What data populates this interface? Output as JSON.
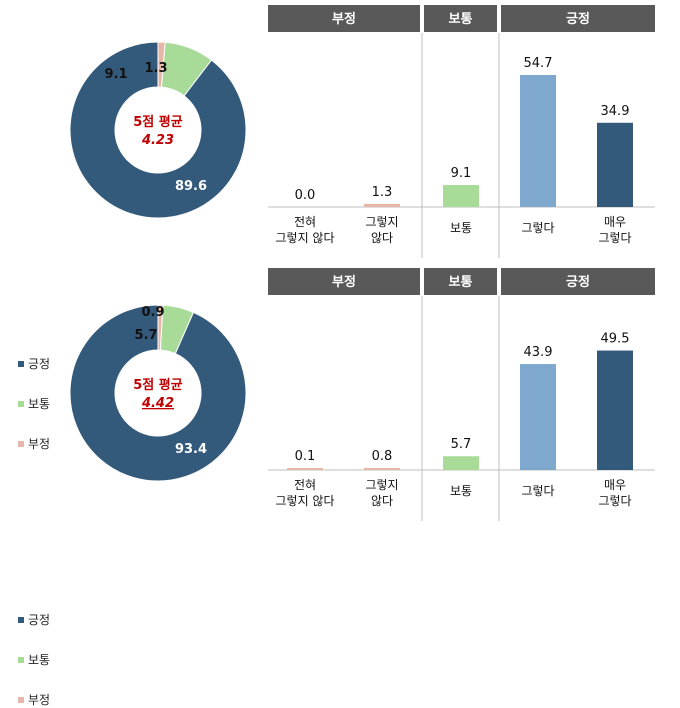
{
  "colors": {
    "positive": "#345a7b",
    "neutral": "#a8db98",
    "negative": "#e6b6a9",
    "agree_bar": "#7fa8cf",
    "header_bg": "#595959",
    "avg_text": "#c00000"
  },
  "avg_label": "5점 평균",
  "headers": [
    "부정",
    "보통",
    "긍정"
  ],
  "legend": [
    "긍정",
    "보통",
    "부정"
  ],
  "bar_labels": [
    [
      "전혀",
      "그렇지 않다"
    ],
    [
      "그렇지",
      "않다"
    ],
    [
      "보통"
    ],
    [
      "그렇다"
    ],
    [
      "매우",
      "그렇다"
    ]
  ],
  "chart_data": [
    {
      "type": "donut+bar",
      "donut": {
        "average": "4.23",
        "slices": [
          {
            "name": "긍정",
            "value": 89.6
          },
          {
            "name": "보통",
            "value": 9.1
          },
          {
            "name": "부정",
            "value": 1.3
          }
        ]
      },
      "bars": [
        0.0,
        1.3,
        9.1,
        54.7,
        34.9
      ],
      "bar_value_labels": [
        "0.0",
        "1.3",
        "9.1",
        "54.7",
        "34.9"
      ]
    },
    {
      "type": "donut+bar",
      "donut": {
        "average": "4.42",
        "slices": [
          {
            "name": "긍정",
            "value": 93.4
          },
          {
            "name": "보통",
            "value": 5.7
          },
          {
            "name": "부정",
            "value": 0.9
          }
        ]
      },
      "bars": [
        0.1,
        0.8,
        5.7,
        43.9,
        49.5
      ],
      "bar_value_labels": [
        "0.1",
        "0.8",
        "5.7",
        "43.9",
        "49.5"
      ]
    }
  ]
}
